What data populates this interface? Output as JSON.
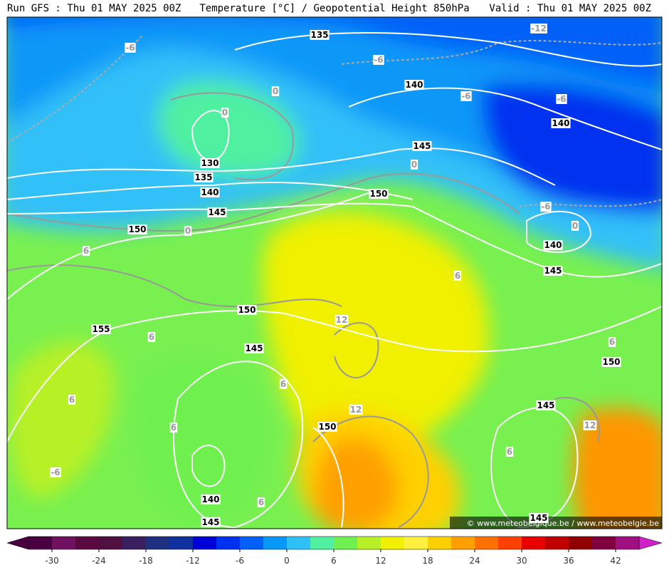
{
  "header": {
    "left": "Run GFS : Thu 01 MAY 2025 00Z",
    "center": "Temperature [°C] / Geopotential Height 850hPa",
    "right": "Valid : Thu 01 MAY 2025 00Z"
  },
  "height_labels": [
    135,
    140,
    140,
    145,
    130,
    135,
    140,
    145,
    150,
    150,
    140,
    145,
    150,
    155,
    145,
    150,
    145,
    150,
    140,
    145,
    145
  ],
  "temperature_labels": [
    -12,
    -6,
    -6,
    -6,
    -6,
    0,
    0,
    0,
    -6,
    0,
    0,
    6,
    6,
    12,
    6,
    6,
    6,
    6,
    12,
    12,
    6,
    6,
    -6,
    6
  ],
  "watermark": "© www.meteobelgique.be / www.meteobelgie.be",
  "colorbar": {
    "lim": [
      -33,
      45
    ],
    "ticks": [
      -30,
      -24,
      -18,
      -12,
      -6,
      0,
      6,
      12,
      18,
      24,
      30,
      36,
      42
    ],
    "colors": [
      "#4a0040",
      "#701060",
      "#5a0a40",
      "#501040",
      "#3a2060",
      "#203080",
      "#1030a0",
      "#0000d8",
      "#0030f0",
      "#0060f8",
      "#0898f8",
      "#30c0f8",
      "#50f0a0",
      "#70f050",
      "#b8f028",
      "#f0f000",
      "#fff040",
      "#ffd000",
      "#ffa000",
      "#ff7000",
      "#ff4000",
      "#e80000",
      "#c00000",
      "#900000",
      "#800040",
      "#a01080"
    ]
  }
}
